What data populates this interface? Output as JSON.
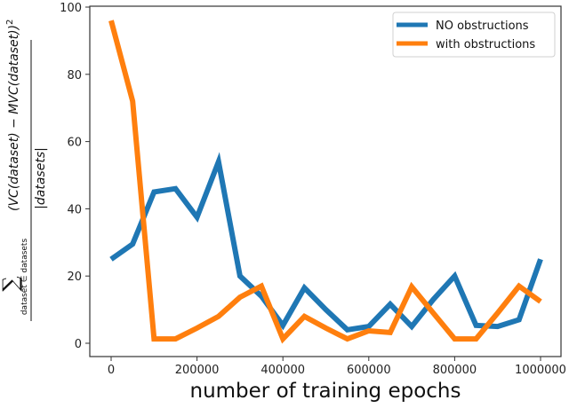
{
  "chart_data": {
    "type": "line",
    "title": "",
    "xlabel": "number of training epochs",
    "ylabel": {
      "sum_symbol": "∑",
      "sum_subscript": "dataset ∈ datasets",
      "numerator": "(VC(dataset) − MVC(dataset))",
      "exponent": "2",
      "denominator": "|datasets|",
      "full": "∑_{dataset ∈ datasets} (VC(dataset) − MVC(dataset))² / |datasets|"
    },
    "xlim": [
      -50000,
      1050000
    ],
    "ylim": [
      -4,
      100
    ],
    "xticks": [
      0,
      200000,
      400000,
      600000,
      800000,
      1000000
    ],
    "xtick_labels": [
      "0",
      "200000",
      "400000",
      "600000",
      "800000",
      "1000000"
    ],
    "yticks": [
      0,
      20,
      40,
      60,
      80,
      100
    ],
    "ytick_labels": [
      "0",
      "20",
      "40",
      "60",
      "80",
      "100"
    ],
    "grid": false,
    "legend_position": "upper right",
    "x": [
      0,
      50000,
      100000,
      150000,
      200000,
      250000,
      300000,
      350000,
      400000,
      450000,
      500000,
      550000,
      600000,
      650000,
      700000,
      750000,
      800000,
      850000,
      900000,
      950000,
      1000000
    ],
    "series": [
      {
        "name": "NO obstructions",
        "color": "#1f77b4",
        "values": [
          25,
          29.5,
          45,
          46,
          37.5,
          54,
          20,
          14,
          5.3,
          16.5,
          10,
          4,
          5,
          11.6,
          5,
          13,
          20,
          5.3,
          5,
          7,
          25
        ]
      },
      {
        "name": "with obstructions",
        "color": "#ff7f0e",
        "values": [
          96,
          72,
          1.3,
          1.3,
          4.5,
          8,
          13.7,
          17,
          1.3,
          8,
          4.5,
          1.3,
          3.7,
          3.2,
          16.8,
          9,
          1.3,
          1.3,
          9,
          17,
          12.4
        ]
      }
    ]
  }
}
